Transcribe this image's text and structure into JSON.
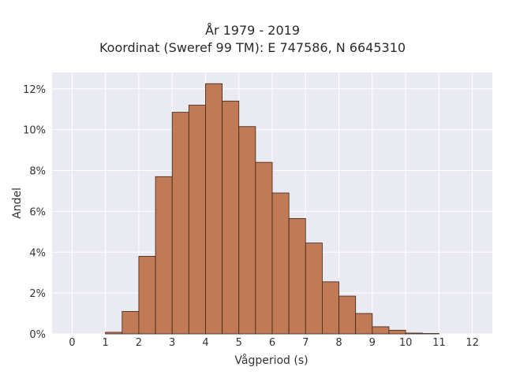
{
  "chart_data": {
    "type": "bar",
    "title": "År 1979 - 2019",
    "subtitle": "Koordinat (Sweref 99 TM): E 747586, N 6645310",
    "xlabel": "Vågperiod (s)",
    "ylabel": "Andel",
    "xlim": [
      -0.6,
      12.6
    ],
    "ylim": [
      0,
      12.8
    ],
    "xticks": [
      0,
      1,
      2,
      3,
      4,
      5,
      6,
      7,
      8,
      9,
      10,
      11,
      12
    ],
    "yticks": [
      0,
      2,
      4,
      6,
      8,
      10,
      12
    ],
    "ytick_labels": [
      "0%",
      "2%",
      "4%",
      "6%",
      "8%",
      "10%",
      "12%"
    ],
    "bin_width": 0.5,
    "bins": [
      {
        "x0": 1.0,
        "value": 0.08
      },
      {
        "x0": 1.5,
        "value": 1.1
      },
      {
        "x0": 2.0,
        "value": 3.8
      },
      {
        "x0": 2.5,
        "value": 7.7
      },
      {
        "x0": 3.0,
        "value": 10.85
      },
      {
        "x0": 3.5,
        "value": 11.2
      },
      {
        "x0": 4.0,
        "value": 12.25
      },
      {
        "x0": 4.5,
        "value": 11.4
      },
      {
        "x0": 5.0,
        "value": 10.15
      },
      {
        "x0": 5.5,
        "value": 8.4
      },
      {
        "x0": 6.0,
        "value": 6.9
      },
      {
        "x0": 6.5,
        "value": 5.65
      },
      {
        "x0": 7.0,
        "value": 4.45
      },
      {
        "x0": 7.5,
        "value": 2.55
      },
      {
        "x0": 8.0,
        "value": 1.85
      },
      {
        "x0": 8.5,
        "value": 1.0
      },
      {
        "x0": 9.0,
        "value": 0.35
      },
      {
        "x0": 9.5,
        "value": 0.18
      },
      {
        "x0": 10.0,
        "value": 0.04
      },
      {
        "x0": 10.5,
        "value": 0.02
      }
    ],
    "grid": true,
    "colors": {
      "bar": "#c07a55",
      "bar_edge": "#3d2418",
      "plot_bg": "#eaeaf2",
      "grid": "#ffffff"
    }
  }
}
